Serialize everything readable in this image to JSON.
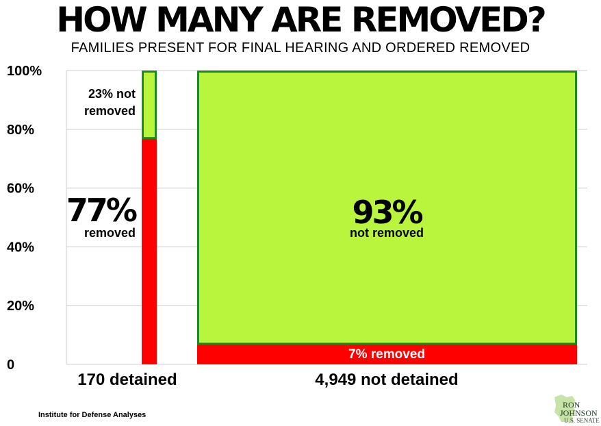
{
  "chart_data": {
    "type": "marimekko",
    "title": "HOW MANY ARE REMOVED?",
    "subtitle": "FAMILIES PRESENT FOR FINAL HEARING AND ORDERED REMOVED",
    "y_ticks": [
      "100%",
      "80%",
      "60%",
      "40%",
      "20%",
      "0"
    ],
    "y_tick_values": [
      100,
      80,
      60,
      40,
      20,
      0
    ],
    "ylim": [
      0,
      100
    ],
    "grid": true,
    "categories": [
      {
        "label": "170 detained",
        "count": 170,
        "segments": [
          {
            "name": "removed",
            "percent": 77,
            "color": "#ff0000"
          },
          {
            "name": "not removed",
            "percent": 23,
            "color": "#b8f53c"
          }
        ],
        "labels": {
          "removed_pct": "77%",
          "removed_text": "removed",
          "not_removed_pct": "23%",
          "not_removed_text": "not removed"
        }
      },
      {
        "label": "4,949 not detained",
        "count": 4949,
        "segments": [
          {
            "name": "removed",
            "percent": 7,
            "color": "#ff0000"
          },
          {
            "name": "not removed",
            "percent": 93,
            "color": "#b8f53c"
          }
        ],
        "labels": {
          "removed_label": "7% removed",
          "not_removed_pct": "93%",
          "not_removed_text": "not removed"
        }
      }
    ],
    "colors": {
      "removed": "#ff0000",
      "not_removed": "#b8f53c",
      "outline": "#1e8a1e",
      "grid": "#cccccc"
    }
  },
  "source": "Institute for Defense Analyses",
  "logo": {
    "line1": "RON",
    "line2": "JOHNSON",
    "line3": "U.S. SENATE"
  }
}
